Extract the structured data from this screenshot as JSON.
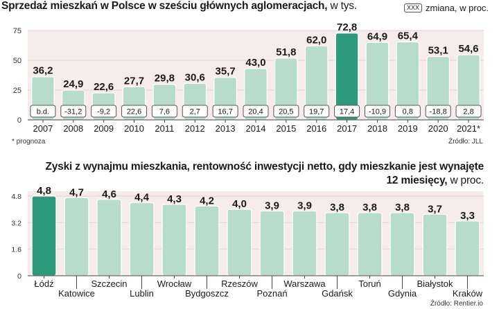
{
  "chart1": {
    "title": "Sprzedaż mieszkań w Polsce w sześciu głównych aglomeracjach,",
    "title_unit": "w tys.",
    "legend_box": "XXX",
    "legend_label": "zmiana, w proc.",
    "footnote": "* prognoza",
    "source": "Źródło: JLL"
  },
  "chart2": {
    "title_line1": "Zyski z wynajmu mieszkania, rentowność inwestycji netto, gdy mieszkanie jest wynajęte",
    "title_line2": "12 miesięcy,",
    "title_unit": "w proc.",
    "source": "Źródło: Rentier.io"
  },
  "colors": {
    "bar": "#b8dccb",
    "highlight": "#2d9b7b",
    "plot_bg": "#f7ecec",
    "bar_edge": "#ffffff"
  },
  "chart_data": [
    {
      "type": "bar",
      "title": "Sprzedaż mieszkań w Polsce w sześciu głównych aglomeracjach, w tys.",
      "categories": [
        "2007",
        "2008",
        "2009",
        "2010",
        "2011",
        "2012",
        "2013",
        "2014",
        "2015",
        "2016",
        "2017",
        "2018",
        "2019",
        "2020",
        "2021*"
      ],
      "values": [
        36.2,
        24.9,
        22.6,
        27.7,
        29.8,
        30.6,
        35.7,
        43.0,
        51.8,
        62.0,
        72.8,
        64.9,
        65.4,
        53.1,
        54.6
      ],
      "value_labels": [
        "36,2",
        "24,9",
        "22,6",
        "27,7",
        "29,8",
        "30,6",
        "35,7",
        "43,0",
        "51,8",
        "62,0",
        "72,8",
        "64,9",
        "65,4",
        "53,1",
        "54,6"
      ],
      "changes": [
        "b.d.",
        "-31,2",
        "-9,2",
        "22,6",
        "7,6",
        "2,7",
        "16,7",
        "20,4",
        "20,5",
        "19,7",
        "17,4",
        "-10,9",
        "0,8",
        "-18,8",
        "2,8"
      ],
      "highlight_index": 10,
      "yticks": [
        0,
        25,
        50,
        75
      ],
      "ylim": [
        0,
        75
      ]
    },
    {
      "type": "bar",
      "title": "Zyski z wynajmu mieszkania, rentowność inwestycji netto, gdy mieszkanie jest wynajęte 12 miesięcy, w proc.",
      "categories": [
        "Łódź",
        "Katowice",
        "Szczecin",
        "Lublin",
        "Wrocław",
        "Bydgoszcz",
        "Rzeszów",
        "Poznań",
        "Warszawa",
        "Gdańsk",
        "Toruń",
        "Gdynia",
        "Białystok",
        "Kraków"
      ],
      "values": [
        4.8,
        4.7,
        4.6,
        4.4,
        4.3,
        4.2,
        4.0,
        3.9,
        3.9,
        3.8,
        3.8,
        3.8,
        3.7,
        3.3
      ],
      "value_labels": [
        "4,8",
        "4,7",
        "4,6",
        "4,4",
        "4,3",
        "4,2",
        "4,0",
        "3,9",
        "3,9",
        "3,8",
        "3,8",
        "3,8",
        "3,7",
        "3,3"
      ],
      "highlight_index": 0,
      "yticks": [
        0,
        1.6,
        3.2,
        4.8
      ],
      "ytick_labels": [
        "0",
        "1.6",
        "3.2",
        "4.8"
      ],
      "ylim": [
        0,
        4.8
      ]
    }
  ]
}
